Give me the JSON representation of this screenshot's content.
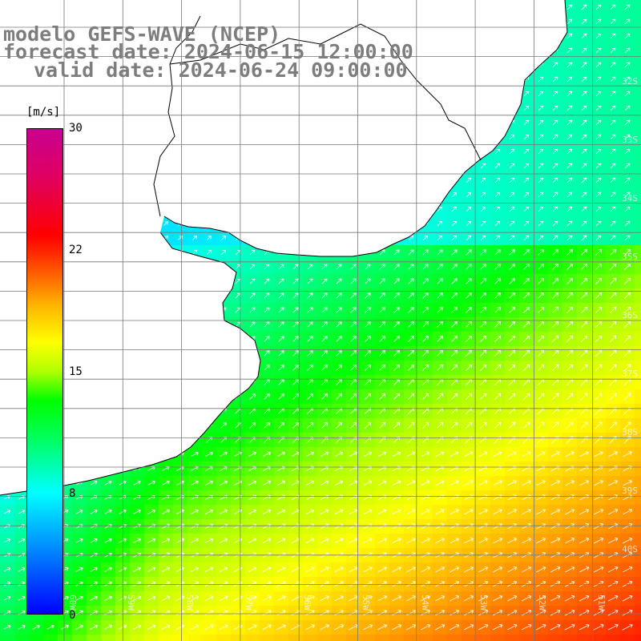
{
  "title": {
    "line1": "modelo GEFS-WAVE (NCEP)",
    "line2": "forecast date: 2024-06-15 12:00:00",
    "line3": "valid date: 2024-06-24 09:00:00"
  },
  "colorbar": {
    "unit": "[m/s]",
    "ticks": [
      "30",
      "22",
      "15",
      "8",
      "0"
    ],
    "range": [
      0,
      30
    ]
  },
  "lon_labels": [
    "60W",
    "59W",
    "58W",
    "57W",
    "56W",
    "55W",
    "54W",
    "53W",
    "52W",
    "51W"
  ],
  "lat_labels": [
    "32S",
    "33S",
    "34S",
    "35S",
    "36S",
    "37S",
    "38S",
    "39S",
    "40S"
  ],
  "map": {
    "variable": "wind speed (m/s) with direction arrows",
    "palette": [
      "#0000ff",
      "#00a0ff",
      "#00ffff",
      "#00ff00",
      "#ffff00",
      "#ff8000",
      "#ff0000",
      "#c80090"
    ],
    "land_color": "#ffffff",
    "coast_color": "#000000",
    "arrow_color": "#ffffff"
  }
}
